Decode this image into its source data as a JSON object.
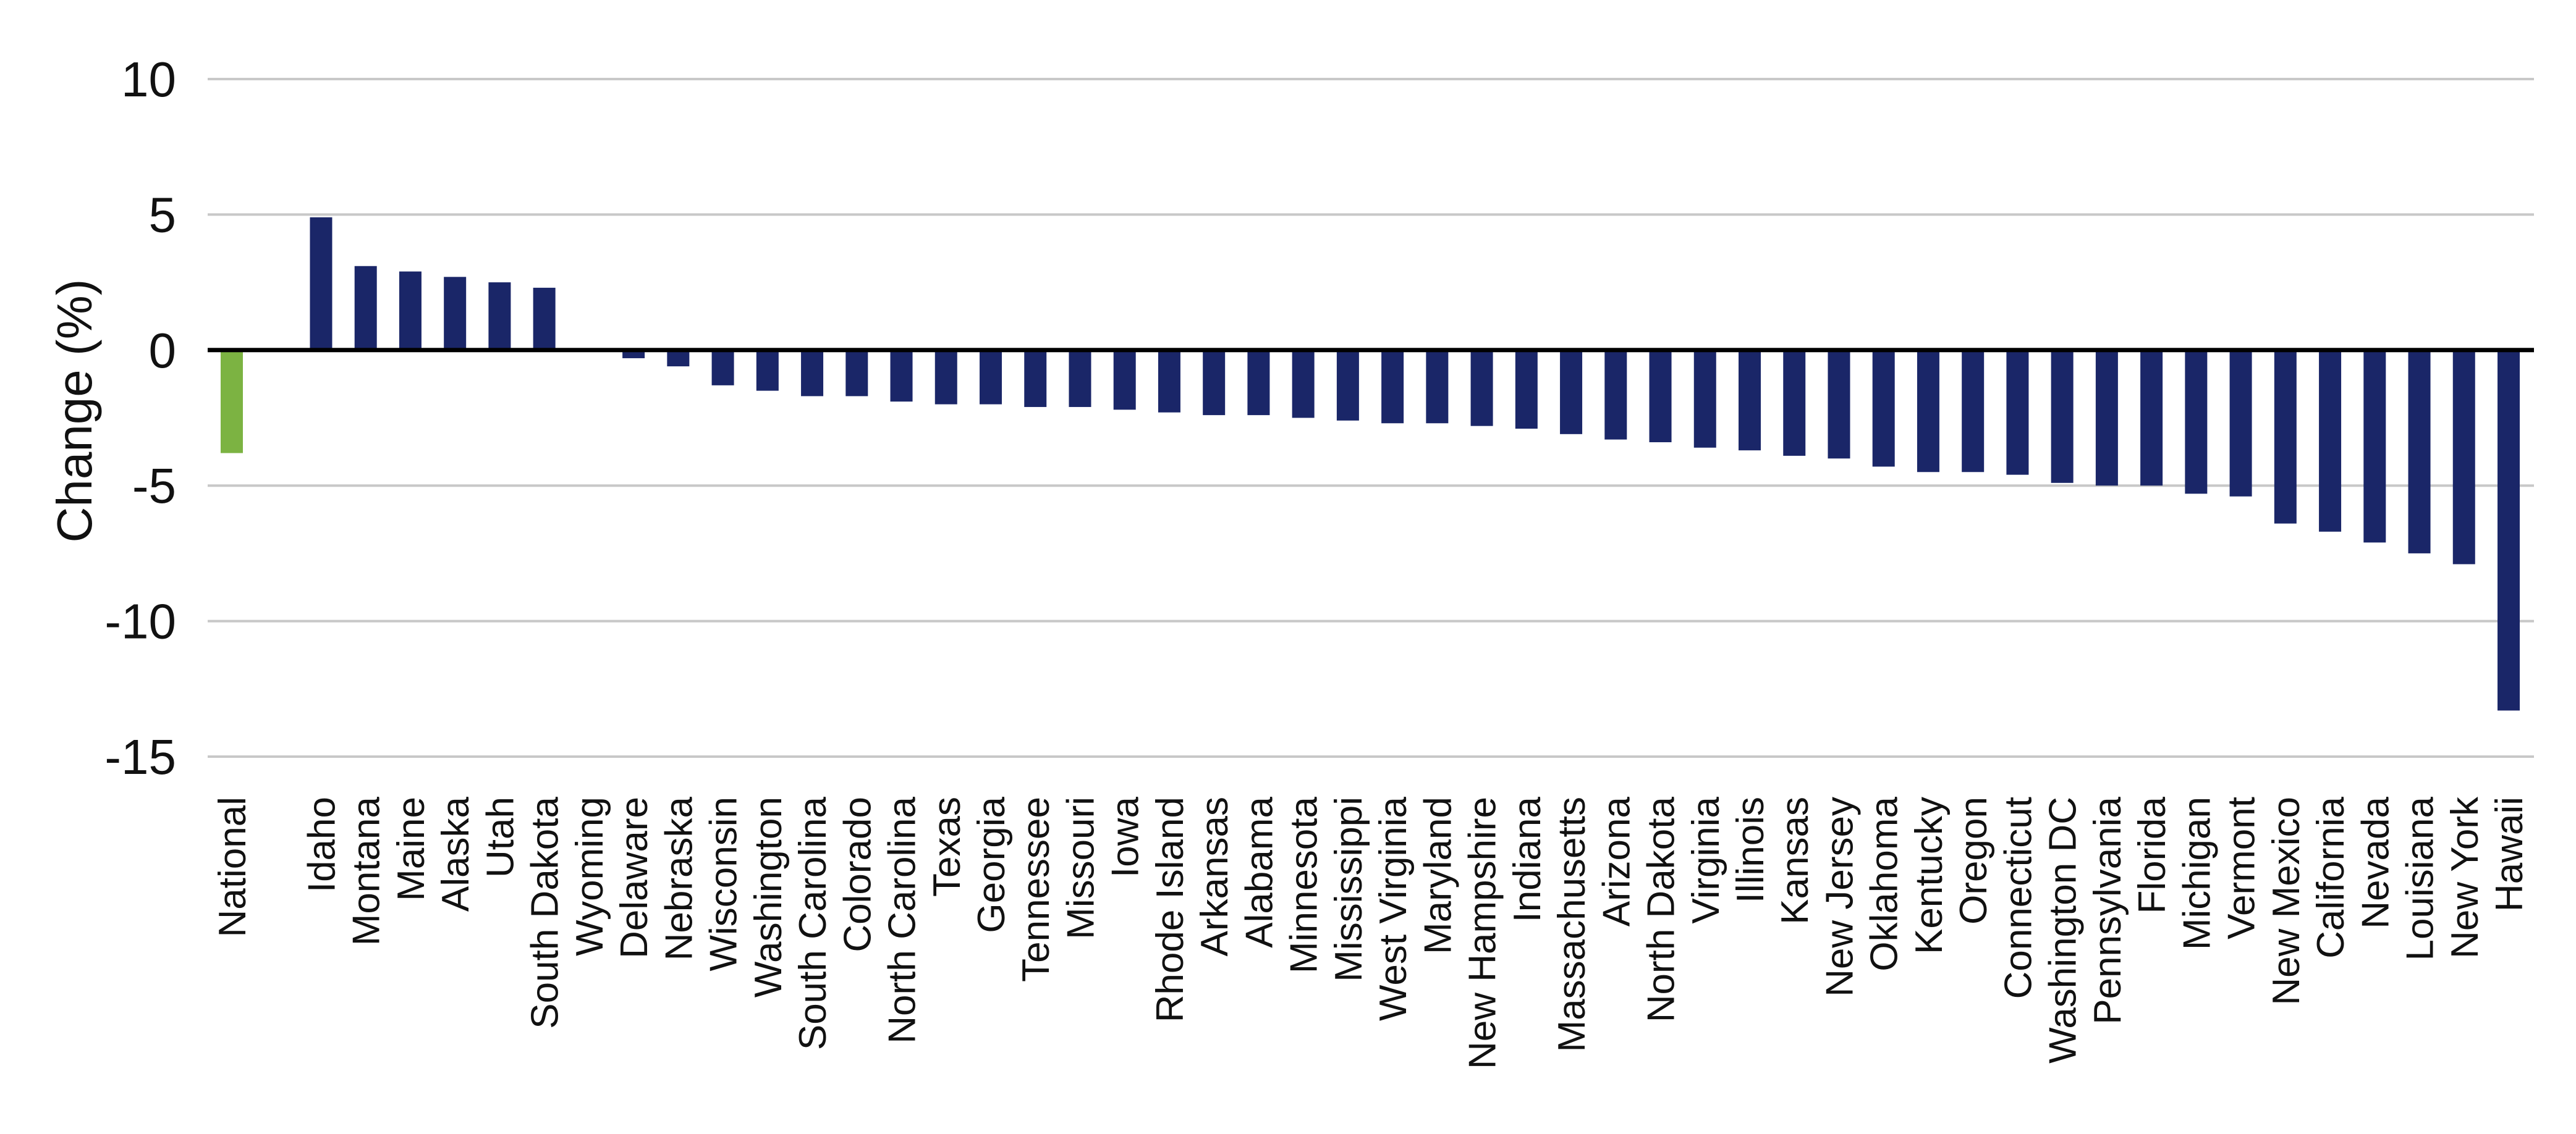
{
  "chart_data": {
    "type": "bar",
    "title": "",
    "xlabel": "",
    "ylabel": "Change (%)",
    "ylim": [
      -15,
      10
    ],
    "yticks": [
      10,
      5,
      0,
      -5,
      -10,
      -15
    ],
    "grid": true,
    "legend": "none",
    "colors": {
      "national": "#7cb342",
      "states": "#1a2668",
      "grid": "#c8c8c8",
      "zero_line": "#000000"
    },
    "categories": [
      "National",
      "",
      "Idaho",
      "Montana",
      "Maine",
      "Alaska",
      "Utah",
      "South Dakota",
      "Wyoming",
      "Delaware",
      "Nebraska",
      "Wisconsin",
      "Washington",
      "South Carolina",
      "Colorado",
      "North Carolina",
      "Texas",
      "Georgia",
      "Tennessee",
      "Missouri",
      "Iowa",
      "Rhode Island",
      "Arkansas",
      "Alabama",
      "Minnesota",
      "Mississippi",
      "West Virginia",
      "Maryland",
      "New Hampshire",
      "Indiana",
      "Massachusetts",
      "Arizona",
      "North Dakota",
      "Virginia",
      "Illinois",
      "Kansas",
      "New Jersey",
      "Oklahoma",
      "Kentucky",
      "Oregon",
      "Connecticut",
      "Washington DC",
      "Pennsylvania",
      "Florida",
      "Michigan",
      "Vermont",
      "New Mexico",
      "California",
      "Nevada",
      "Louisiana",
      "New York",
      "Hawaii"
    ],
    "values": [
      -3.8,
      null,
      4.9,
      3.1,
      2.9,
      2.7,
      2.5,
      2.3,
      0.0,
      -0.3,
      -0.6,
      -1.3,
      -1.5,
      -1.7,
      -1.7,
      -1.9,
      -2.0,
      -2.0,
      -2.1,
      -2.1,
      -2.2,
      -2.3,
      -2.4,
      -2.4,
      -2.5,
      -2.6,
      -2.7,
      -2.7,
      -2.8,
      -2.9,
      -3.1,
      -3.3,
      -3.4,
      -3.6,
      -3.7,
      -3.9,
      -4.0,
      -4.3,
      -4.5,
      -4.5,
      -4.6,
      -4.9,
      -5.0,
      -5.0,
      -5.3,
      -5.4,
      -6.4,
      -6.7,
      -7.1,
      -7.5,
      -7.9,
      -13.3
    ]
  }
}
